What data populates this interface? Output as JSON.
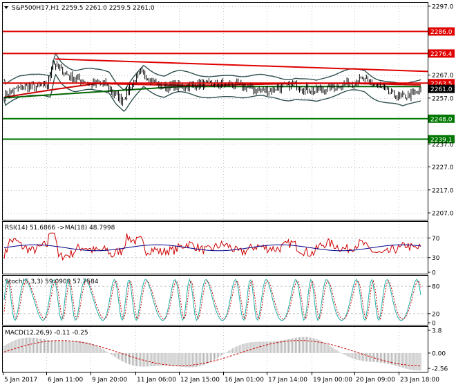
{
  "main": {
    "header": {
      "symbol_label": "S&P500H17,H1",
      "ohlc": "2259.5 2261.0 2259.5 2261.0"
    },
    "price_axis": {
      "ticks": [
        {
          "label": "2297.0",
          "v": 2297.0
        },
        {
          "label": "2267.0",
          "v": 2267.0
        },
        {
          "label": "2257.0",
          "v": 2257.0
        },
        {
          "label": "2237.0",
          "v": 2237.0
        },
        {
          "label": "2227.0",
          "v": 2227.0
        },
        {
          "label": "2217.0",
          "v": 2217.0
        },
        {
          "label": "2207.0",
          "v": 2207.0
        }
      ],
      "min": 2204.0,
      "max": 2298.5
    },
    "levels": [
      {
        "label": "2286.0",
        "v": 2286.0,
        "color": "#e00000"
      },
      {
        "label": "2276.4",
        "v": 2276.4,
        "color": "#e00000"
      },
      {
        "label": "2263.5",
        "v": 2263.5,
        "color": "#e00000"
      },
      {
        "label": "2248.0",
        "v": 2248.0,
        "color": "#007700"
      },
      {
        "label": "2239.1",
        "v": 2239.1,
        "color": "#007700"
      }
    ],
    "current_price": {
      "label": "2261.0",
      "v": 2261.0
    },
    "colors": {
      "candles": "#000000",
      "bollinger": "#2f4f4f",
      "ma_red": "#cc0000",
      "ma_green": "#006400",
      "trendline": "#e00000"
    }
  },
  "rsi": {
    "label": "RSI(14) 51.6866 ->MA(18) 48.7998",
    "ticks": [
      {
        "label": "70",
        "v": 70
      },
      {
        "label": "30",
        "v": 30
      },
      {
        "label": "0",
        "v": 0
      }
    ],
    "colors": {
      "rsi": "#cc0000",
      "ma": "#00008b"
    }
  },
  "stoch": {
    "label": "Stoch(5,3,3) 59.0909 57.7584",
    "ticks": [
      {
        "label": "80",
        "v": 80
      },
      {
        "label": "20",
        "v": 20
      },
      {
        "label": "0",
        "v": 0
      }
    ],
    "colors": {
      "main": "#20b2aa",
      "signal": "#cc0000"
    }
  },
  "macd": {
    "label": "MACD(12,26,9) -0.11 -0.25",
    "ticks": [
      {
        "label": "3.8",
        "v": 3.8
      },
      {
        "label": "0.00",
        "v": 0.0
      },
      {
        "label": "-2.56",
        "v": -2.56
      }
    ],
    "colors": {
      "histogram": "#b0b0b0",
      "signal": "#cc0000"
    }
  },
  "time_axis": {
    "labels": [
      "5 Jan 2017",
      "6 Jan 11:00",
      "9 Jan 20:00",
      "11 Jan 06:00",
      "12 Jan 15:00",
      "16 Jan 01:00",
      "17 Jan 14:00",
      "19 Jan 00:00",
      "20 Jan 09:00",
      "23 Jan 18:00"
    ]
  }
}
